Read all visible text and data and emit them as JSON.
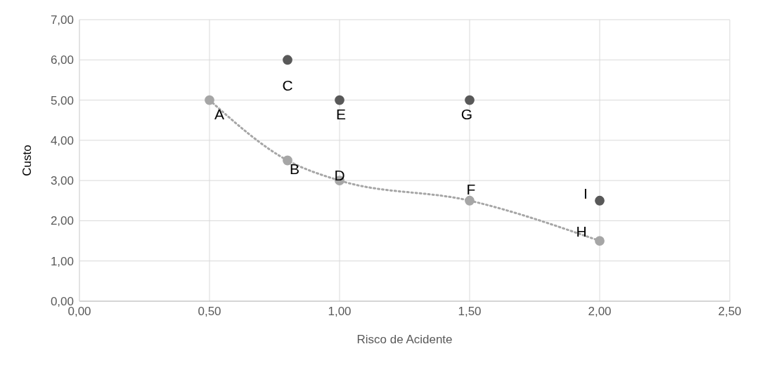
{
  "chart_data": {
    "type": "scatter",
    "xlabel": "Risco de Acidente",
    "ylabel": "Custo",
    "xlim": [
      0,
      2.5
    ],
    "xticks": [
      {
        "value": 0,
        "label": "0,00"
      },
      {
        "value": 0.5,
        "label": "0,50"
      },
      {
        "value": 1,
        "label": "1,00"
      },
      {
        "value": 1.5,
        "label": "1,50"
      },
      {
        "value": 2,
        "label": "2,00"
      },
      {
        "value": 2.5,
        "label": "2,50"
      }
    ],
    "ylim": [
      0,
      7
    ],
    "yticks": [
      {
        "value": 0,
        "label": "0,00"
      },
      {
        "value": 1,
        "label": "1,00"
      },
      {
        "value": 2,
        "label": "2,00"
      },
      {
        "value": 3,
        "label": "3,00"
      },
      {
        "value": 4,
        "label": "4,00"
      },
      {
        "value": 5,
        "label": "5,00"
      },
      {
        "value": 6,
        "label": "6,00"
      },
      {
        "value": 7,
        "label": "7,00"
      }
    ],
    "grid": true,
    "marker": "circle",
    "series": [
      {
        "type": "line",
        "color": "#a6a6a6",
        "x": [
          0.5,
          0.8,
          1,
          1.5,
          2
        ],
        "values": [
          5,
          3.5,
          3,
          2.5,
          1.5
        ],
        "line_style": "dotted",
        "marker": "none"
      },
      {
        "color": "#a6a6a6",
        "x": [
          0.5,
          0.8,
          1,
          1.5,
          2
        ],
        "values": [
          5,
          3.5,
          3,
          2.5,
          1.5
        ]
      },
      {
        "color": "#595959",
        "x": [
          0.8,
          1,
          1.5,
          2
        ],
        "values": [
          6,
          5,
          5,
          2.5
        ]
      }
    ],
    "annotations": [
      {
        "text": "A",
        "x": 0.5,
        "y": 5
      },
      {
        "text": "B",
        "x": 0.8,
        "y": 3.5
      },
      {
        "text": "C",
        "x": 0.8,
        "y": 6
      },
      {
        "text": "D",
        "x": 1,
        "y": 3
      },
      {
        "text": "E",
        "x": 1,
        "y": 5
      },
      {
        "text": "F",
        "x": 1.5,
        "y": 2.5
      },
      {
        "text": "G",
        "x": 1.5,
        "y": 5
      },
      {
        "text": "H",
        "x": 2,
        "y": 1.5
      },
      {
        "text": "I",
        "x": 2,
        "y": 2.5
      }
    ]
  }
}
